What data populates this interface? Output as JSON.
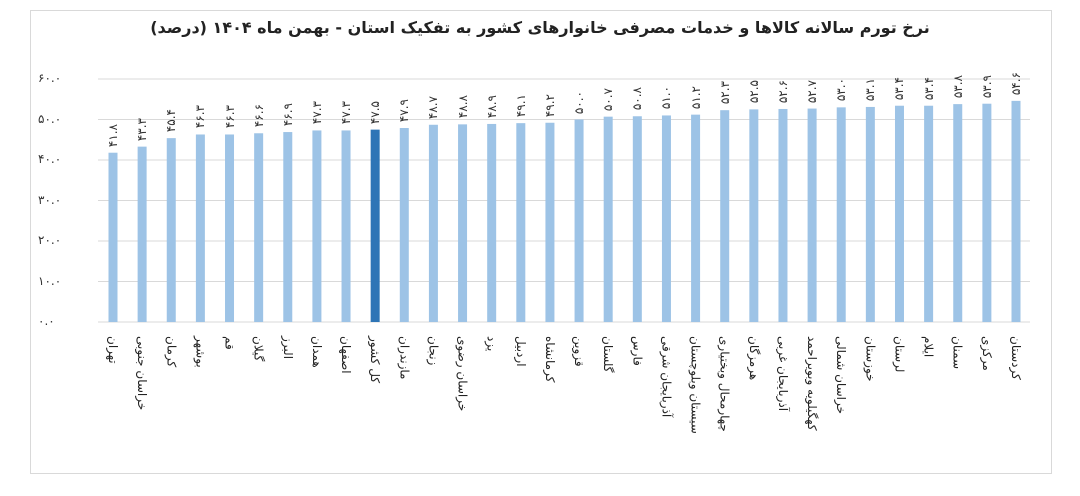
{
  "chart_data": {
    "type": "bar",
    "title": "نرخ تورم سالانه کالاها و خدمات مصرفی خانوارهای کشور به تفکیک استان - بهمن ماه ۱۴۰۴ (درصد)",
    "categories": [
      "تهران",
      "خراسان جنوبی",
      "کرمان",
      "بوشهر",
      "قم",
      "گیلان",
      "البرز",
      "همدان",
      "اصفهان",
      "کل کشور",
      "مازندران",
      "زنجان",
      "خراسان رضوی",
      "یزد",
      "اردبیل",
      "کرمانشاه",
      "قزوین",
      "گلستان",
      "فارس",
      "آذربایجان شرقی",
      "سیستان وبلوچستان",
      "چهارمحال وبختیاری",
      "هرمزگان",
      "آذربایجان غربی",
      "کهگیلویه وبویراحمد",
      "خراسان شمالی",
      "خوزستان",
      "لرستان",
      "ایلام",
      "سمنان",
      "مرکزی",
      "کردستان"
    ],
    "values": [
      41.8,
      43.3,
      45.4,
      46.3,
      46.3,
      46.6,
      46.9,
      47.3,
      47.3,
      47.5,
      47.9,
      48.7,
      48.8,
      48.9,
      49.1,
      49.2,
      50.0,
      50.7,
      50.8,
      51.0,
      51.2,
      52.3,
      52.5,
      52.6,
      52.7,
      53.0,
      53.1,
      53.4,
      53.4,
      53.8,
      53.9,
      54.6
    ],
    "data_labels": [
      "۴۱.۸",
      "۴۳.۳",
      "۴۵.۴",
      "۴۶.۳",
      "۴۶.۳",
      "۴۶.۶",
      "۴۶.۹",
      "۴۷.۳",
      "۴۷.۳",
      "۴۷.۵",
      "۴۷.۹",
      "۴۸.۷",
      "۴۸.۸",
      "۴۸.۹",
      "۴۹.۱",
      "۴۹.۲",
      "۵۰.۰",
      "۵۰.۷",
      "۵۰.۸",
      "۵۱.۰",
      "۵۱.۲",
      "۵۲.۳",
      "۵۲.۵",
      "۵۲.۶",
      "۵۲.۷",
      "۵۳.۰",
      "۵۳.۱",
      "۵۳.۴",
      "۵۳.۴",
      "۵۳.۸",
      "۵۳.۹",
      "۵۴.۶"
    ],
    "ylim": [
      0,
      60
    ],
    "yticks": [
      0,
      10,
      20,
      30,
      40,
      50,
      60
    ],
    "ytick_labels": [
      "۰.۰",
      "۱۰.۰",
      "۲۰.۰",
      "۳۰.۰",
      "۴۰.۰",
      "۵۰.۰",
      "۶۰.۰"
    ],
    "grid": true,
    "highlight_category": "کل کشور",
    "colors": {
      "bar": "#9dc3e6",
      "highlight": "#2e75b6",
      "grid": "#d9d9d9"
    }
  }
}
